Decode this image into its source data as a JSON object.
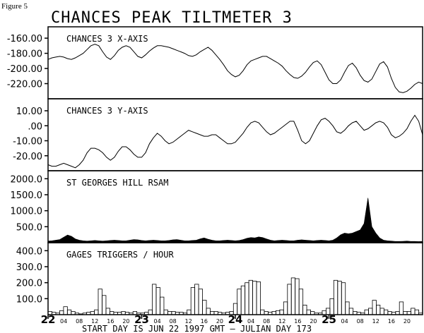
{
  "figure_label": "Figure 5",
  "title": "CHANCES PEAK TILTMETER 3",
  "footer_text": "START DAY IS JUN 22 1997 GMT   — JULIAN DAY 173",
  "chart_data": [
    {
      "type": "line",
      "title": "CHANCES 3 X-AXIS",
      "yticks": [
        "-160.00",
        "-180.00",
        "-200.00",
        "-220.00"
      ],
      "ytick_values": [
        -160,
        -180,
        -200,
        -220
      ],
      "ylim": [
        -240,
        -145
      ],
      "xlim": [
        0,
        96
      ],
      "x": [
        0,
        1,
        2,
        3,
        4,
        5,
        6,
        7,
        8,
        9,
        10,
        11,
        12,
        13,
        14,
        15,
        16,
        17,
        18,
        19,
        20,
        21,
        22,
        23,
        24,
        25,
        26,
        27,
        28,
        29,
        30,
        31,
        32,
        33,
        34,
        35,
        36,
        37,
        38,
        39,
        40,
        41,
        42,
        43,
        44,
        45,
        46,
        47,
        48,
        49,
        50,
        51,
        52,
        53,
        54,
        55,
        56,
        57,
        58,
        59,
        60,
        61,
        62,
        63,
        64,
        65,
        66,
        67,
        68,
        69,
        70,
        71,
        72,
        73,
        74,
        75,
        76,
        77,
        78,
        79,
        80,
        81,
        82,
        83,
        84,
        85,
        86,
        87,
        88,
        89,
        90,
        91,
        92,
        93,
        94,
        95,
        96
      ],
      "values": [
        -188,
        -186,
        -185,
        -184,
        -185,
        -187,
        -188,
        -186,
        -183,
        -180,
        -175,
        -170,
        -168,
        -170,
        -178,
        -185,
        -188,
        -183,
        -176,
        -172,
        -170,
        -172,
        -178,
        -184,
        -186,
        -182,
        -177,
        -173,
        -170,
        -170,
        -171,
        -172,
        -174,
        -176,
        -178,
        -180,
        -183,
        -184,
        -182,
        -178,
        -175,
        -172,
        -176,
        -182,
        -188,
        -195,
        -203,
        -208,
        -211,
        -209,
        -203,
        -195,
        -190,
        -188,
        -186,
        -184,
        -184,
        -187,
        -190,
        -193,
        -197,
        -203,
        -208,
        -212,
        -213,
        -210,
        -205,
        -198,
        -192,
        -190,
        -195,
        -205,
        -215,
        -220,
        -220,
        -215,
        -205,
        -196,
        -193,
        -199,
        -209,
        -216,
        -218,
        -214,
        -204,
        -194,
        -191,
        -198,
        -213,
        -225,
        -231,
        -232,
        -230,
        -226,
        -221,
        -218,
        -220
      ]
    },
    {
      "type": "line",
      "title": "CHANCES 3 Y-AXIS",
      "yticks": [
        "10.00",
        ".00",
        "-10.00",
        "-20.00"
      ],
      "ytick_values": [
        10,
        0,
        -10,
        -20
      ],
      "ylim": [
        -30,
        18
      ],
      "xlim": [
        0,
        96
      ],
      "x": [
        0,
        1,
        2,
        3,
        4,
        5,
        6,
        7,
        8,
        9,
        10,
        11,
        12,
        13,
        14,
        15,
        16,
        17,
        18,
        19,
        20,
        21,
        22,
        23,
        24,
        25,
        26,
        27,
        28,
        29,
        30,
        31,
        32,
        33,
        34,
        35,
        36,
        37,
        38,
        39,
        40,
        41,
        42,
        43,
        44,
        45,
        46,
        47,
        48,
        49,
        50,
        51,
        52,
        53,
        54,
        55,
        56,
        57,
        58,
        59,
        60,
        61,
        62,
        63,
        64,
        65,
        66,
        67,
        68,
        69,
        70,
        71,
        72,
        73,
        74,
        75,
        76,
        77,
        78,
        79,
        80,
        81,
        82,
        83,
        84,
        85,
        86,
        87,
        88,
        89,
        90,
        91,
        92,
        93,
        94,
        95,
        96
      ],
      "values": [
        -26,
        -27,
        -27,
        -26,
        -25,
        -26,
        -27,
        -28,
        -26,
        -23,
        -18,
        -15,
        -15,
        -16,
        -18,
        -21,
        -23,
        -21,
        -17,
        -14,
        -14,
        -16,
        -19,
        -21,
        -21,
        -18,
        -12,
        -8,
        -5,
        -7,
        -10,
        -12,
        -11,
        -9,
        -7,
        -5,
        -3,
        -4,
        -5,
        -6,
        -7,
        -7,
        -6,
        -6,
        -8,
        -10,
        -12,
        -12,
        -11,
        -8,
        -5,
        -1,
        2,
        3,
        2,
        -1,
        -4,
        -6,
        -5,
        -3,
        -1,
        1,
        3,
        3,
        -3,
        -10,
        -12,
        -10,
        -5,
        0,
        4,
        5,
        3,
        0,
        -4,
        -5,
        -3,
        0,
        2,
        3,
        0,
        -3,
        -2,
        0,
        2,
        3,
        2,
        -1,
        -6,
        -8,
        -7,
        -5,
        -2,
        3,
        7,
        3,
        -6
      ]
    },
    {
      "type": "area",
      "title": "ST GEORGES HILL RSAM",
      "yticks": [
        "2000.0",
        "1500.0",
        "1000.0",
        "500.0"
      ],
      "ytick_values": [
        2000,
        1500,
        1000,
        500
      ],
      "ylim": [
        0,
        2250
      ],
      "xlim": [
        0,
        96
      ],
      "x": [
        0,
        1,
        2,
        3,
        4,
        5,
        6,
        7,
        8,
        9,
        10,
        11,
        12,
        13,
        14,
        15,
        16,
        17,
        18,
        19,
        20,
        21,
        22,
        23,
        24,
        25,
        26,
        27,
        28,
        29,
        30,
        31,
        32,
        33,
        34,
        35,
        36,
        37,
        38,
        39,
        40,
        41,
        42,
        43,
        44,
        45,
        46,
        47,
        48,
        49,
        50,
        51,
        52,
        53,
        54,
        55,
        56,
        57,
        58,
        59,
        60,
        61,
        62,
        63,
        64,
        65,
        66,
        67,
        68,
        69,
        70,
        71,
        72,
        73,
        74,
        75,
        76,
        77,
        78,
        79,
        80,
        81,
        82,
        83,
        84,
        85,
        86,
        87,
        88,
        89,
        90,
        91,
        92,
        93,
        94,
        95,
        96
      ],
      "values": [
        50,
        60,
        80,
        100,
        170,
        240,
        200,
        120,
        80,
        60,
        50,
        60,
        70,
        60,
        50,
        60,
        70,
        80,
        70,
        60,
        60,
        80,
        100,
        90,
        70,
        60,
        70,
        80,
        70,
        60,
        60,
        70,
        90,
        100,
        80,
        60,
        60,
        70,
        80,
        120,
        150,
        110,
        80,
        60,
        60,
        70,
        80,
        70,
        60,
        70,
        100,
        140,
        160,
        150,
        180,
        160,
        120,
        80,
        60,
        70,
        80,
        70,
        60,
        60,
        80,
        90,
        80,
        70,
        60,
        70,
        80,
        70,
        60,
        80,
        150,
        250,
        300,
        280,
        300,
        350,
        400,
        600,
        1400,
        500,
        300,
        150,
        80,
        60,
        50,
        40,
        40,
        45,
        50,
        40,
        40,
        35,
        40
      ]
    },
    {
      "type": "bar",
      "title": "GAGES TRIGGERS / HOUR",
      "yticks": [
        "400.0",
        "300.0",
        "200.0",
        "100.0"
      ],
      "ytick_values": [
        400,
        300,
        200,
        100
      ],
      "ylim": [
        0,
        450
      ],
      "xlim": [
        0,
        96
      ],
      "values": [
        20,
        15,
        10,
        25,
        50,
        30,
        20,
        10,
        5,
        10,
        15,
        20,
        30,
        160,
        120,
        40,
        20,
        15,
        15,
        20,
        15,
        10,
        20,
        10,
        10,
        15,
        30,
        190,
        170,
        110,
        30,
        20,
        20,
        15,
        15,
        10,
        30,
        170,
        190,
        160,
        90,
        40,
        20,
        20,
        15,
        10,
        15,
        20,
        70,
        160,
        180,
        200,
        215,
        210,
        205,
        30,
        20,
        15,
        20,
        25,
        30,
        80,
        190,
        230,
        225,
        160,
        60,
        30,
        20,
        10,
        10,
        25,
        40,
        100,
        215,
        210,
        200,
        80,
        40,
        20,
        15,
        10,
        30,
        40,
        90,
        60,
        40,
        30,
        20,
        15,
        20,
        80,
        20,
        20,
        40,
        30,
        10
      ]
    }
  ],
  "day_labels": [
    {
      "text": "22",
      "x": 0
    },
    {
      "text": "23",
      "x": 24
    },
    {
      "text": "24",
      "x": 48
    },
    {
      "text": "25",
      "x": 72
    }
  ],
  "hour_labels": [
    "04",
    "08",
    "12",
    "16",
    "20"
  ]
}
